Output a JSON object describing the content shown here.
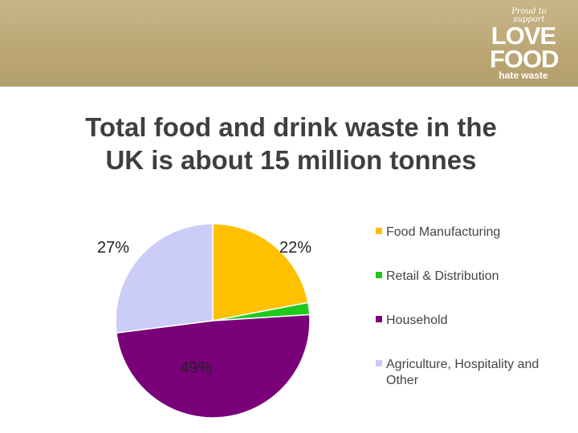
{
  "logo": {
    "line1": "Proud to support",
    "line2": "LOVE",
    "line3": "FOOD",
    "line4": "hate waste"
  },
  "colors": {
    "header": "#bca776",
    "title": "#3f3f3f"
  },
  "chart_data": {
    "type": "pie",
    "title": "Total food and drink waste in the UK is about 15 million tonnes",
    "slices": [
      {
        "name": "Food Manufacturing",
        "value": 22,
        "label": "22%",
        "color": "#ffc000"
      },
      {
        "name": "Retail & Distribution",
        "value": 2,
        "label": "",
        "color": "#1ec81e"
      },
      {
        "name": "Household",
        "value": 49,
        "label": "49%",
        "color": "#7a007a"
      },
      {
        "name": "Agriculture, Hospitality and Other",
        "value": 27,
        "label": "27%",
        "color": "#ccccf8"
      }
    ],
    "start_angle_deg": 0,
    "direction": "clockwise",
    "legend": {
      "position": "right",
      "items": [
        {
          "label": "Food Manufacturing",
          "color": "#ffc000"
        },
        {
          "label": "Retail & Distribution",
          "color": "#1ec81e"
        },
        {
          "label": "Household",
          "color": "#7a007a"
        },
        {
          "label": "Agriculture, Hospitality and Other",
          "color": "#ccccf8"
        }
      ]
    }
  }
}
